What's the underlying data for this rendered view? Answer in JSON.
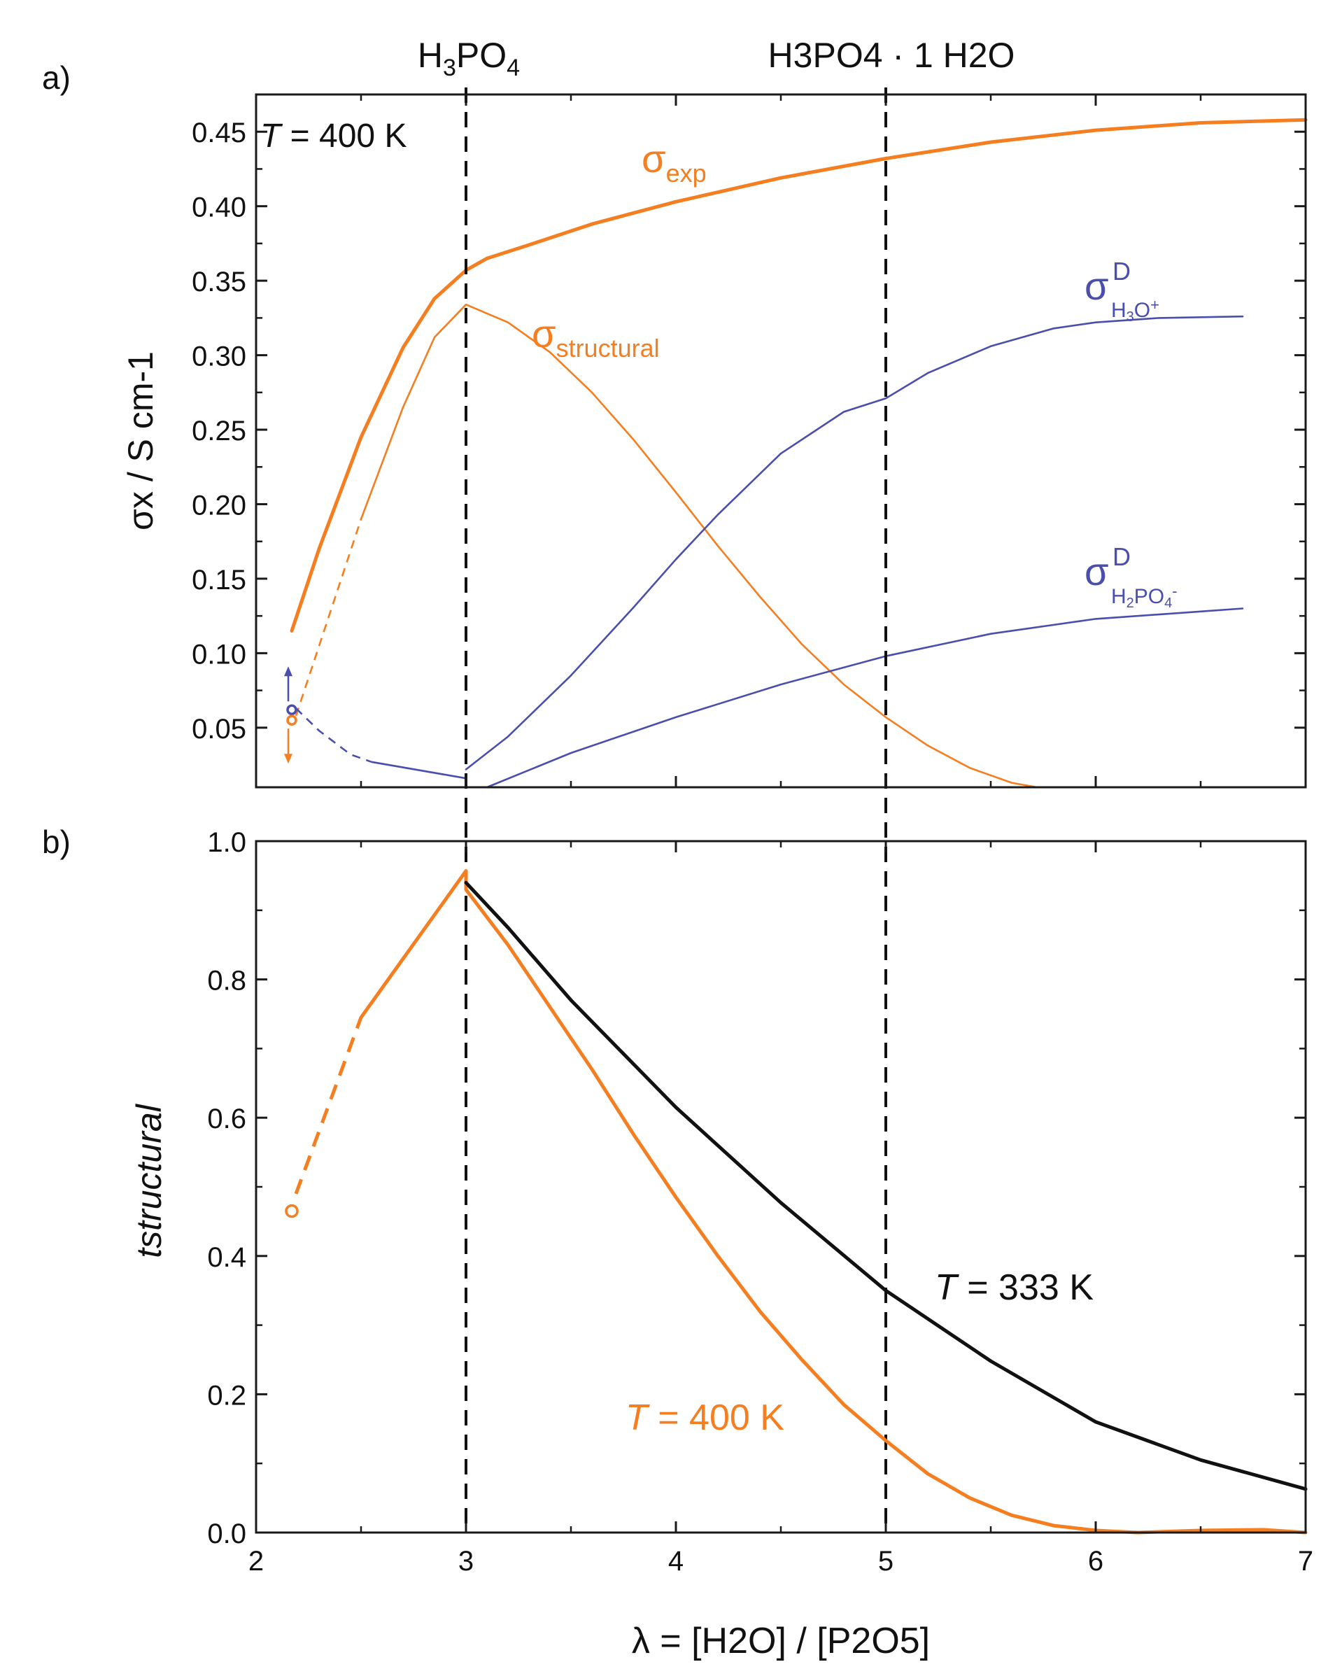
{
  "colors": {
    "orange": "#F47E20",
    "blue": "#4A4EAD",
    "black": "#111111",
    "axis": "#1a1a1a"
  },
  "top_labels": {
    "acid": {
      "main": [
        "H",
        "PO"
      ],
      "subs": [
        "3",
        "4"
      ]
    },
    "hydrate": {
      "text": "H3PO4 · 1 H2O"
    }
  },
  "chart_data": [
    {
      "id": "a",
      "panel_label": "a)",
      "type": "line",
      "title": "",
      "xlabel": "λ = [H2O] / [P2O5]",
      "ylabel": "σx / S cm-1",
      "xlim": [
        2,
        7
      ],
      "ylim": [
        0.01,
        0.475
      ],
      "xticks": [
        2,
        3,
        4,
        5,
        6,
        7
      ],
      "yticks": [
        0.05,
        0.1,
        0.15,
        0.2,
        0.25,
        0.3,
        0.35,
        0.4,
        0.45
      ],
      "ytick_labels": [
        "0.05",
        "0.10",
        "0.15",
        "0.20",
        "0.25",
        "0.30",
        "0.35",
        "0.40",
        "0.45"
      ],
      "vlines": [
        3,
        5
      ],
      "annotation": {
        "text": "T = 400 K",
        "italic": "T",
        "rest": " = 400 K"
      },
      "series": [
        {
          "name": "σexp",
          "label_main": "σ",
          "label_sub": "exp",
          "color": "orange",
          "width": "bold",
          "x": [
            2.17,
            2.3,
            2.5,
            2.7,
            2.85,
            3.0,
            3.1,
            3.3,
            3.6,
            4.0,
            4.5,
            5.0,
            5.5,
            6.0,
            6.5,
            7.0
          ],
          "y": [
            0.115,
            0.17,
            0.245,
            0.305,
            0.338,
            0.357,
            0.365,
            0.374,
            0.388,
            0.403,
            0.419,
            0.432,
            0.443,
            0.451,
            0.456,
            0.458
          ]
        },
        {
          "name": "σstructural",
          "label_main": "σ",
          "label_sub": "structural",
          "color": "orange",
          "width": "thin",
          "x": [
            2.5,
            2.7,
            2.85,
            3.0,
            3.2,
            3.4,
            3.6,
            3.8,
            4.0,
            4.2,
            4.4,
            4.6,
            4.8,
            5.0,
            5.2,
            5.4,
            5.6,
            5.72
          ],
          "y": [
            0.19,
            0.265,
            0.312,
            0.334,
            0.322,
            0.302,
            0.275,
            0.243,
            0.208,
            0.172,
            0.138,
            0.106,
            0.079,
            0.057,
            0.038,
            0.023,
            0.013,
            0.01
          ],
          "dashed_x": [
            2.19,
            2.5
          ],
          "dashed_y": [
            0.058,
            0.19
          ]
        },
        {
          "name": "σD H3O+",
          "label_main": "σ",
          "label_sup": "D",
          "label_sub_parts": [
            "H",
            "3",
            "O",
            "+"
          ],
          "color": "blue",
          "width": "thin",
          "x": [
            3.0,
            3.2,
            3.5,
            3.8,
            4.0,
            4.2,
            4.5,
            4.8,
            5.0,
            5.2,
            5.5,
            5.8,
            6.0,
            6.3,
            6.7
          ],
          "y": [
            0.022,
            0.044,
            0.085,
            0.131,
            0.163,
            0.193,
            0.234,
            0.262,
            0.271,
            0.288,
            0.306,
            0.318,
            0.322,
            0.325,
            0.326
          ]
        },
        {
          "name": "σD H2PO4-",
          "label_main": "σ",
          "label_sup": "D",
          "label_sub_parts": [
            "H",
            "2",
            "PO",
            "4",
            "-"
          ],
          "color": "blue",
          "width": "thin",
          "x": [
            3.1,
            3.5,
            4.0,
            4.5,
            5.0,
            5.5,
            6.0,
            6.5,
            6.7
          ],
          "y": [
            0.01,
            0.033,
            0.057,
            0.079,
            0.098,
            0.113,
            0.123,
            0.128,
            0.13
          ],
          "lead_x": [
            2.55,
            3.0
          ],
          "lead_y": [
            0.027,
            0.016
          ],
          "dashed_x": [
            2.19,
            2.3,
            2.45,
            2.55
          ],
          "dashed_y": [
            0.063,
            0.048,
            0.032,
            0.027
          ]
        }
      ],
      "markers": [
        {
          "x": 2.17,
          "y": 0.062,
          "color": "blue",
          "arrow": "up"
        },
        {
          "x": 2.17,
          "y": 0.055,
          "color": "orange",
          "arrow": "down"
        }
      ]
    },
    {
      "id": "b",
      "panel_label": "b)",
      "type": "line",
      "title": "",
      "xlabel": "λ = [H2O] / [P2O5]",
      "ylabel": "tstructural",
      "xlim": [
        2,
        7
      ],
      "ylim": [
        0.0,
        1.0
      ],
      "xticks": [
        2,
        3,
        4,
        5,
        6,
        7
      ],
      "xtick_labels": [
        "2",
        "3",
        "4",
        "5",
        "6",
        "7"
      ],
      "yticks": [
        0.0,
        0.2,
        0.4,
        0.6,
        0.8,
        1.0
      ],
      "ytick_labels": [
        "0.0",
        "0.2",
        "0.4",
        "0.6",
        "0.8",
        "1.0"
      ],
      "vlines": [
        3,
        5
      ],
      "series": [
        {
          "name": "T = 400 K",
          "label_italic": "T",
          "label_rest": " = 400 K",
          "color": "orange",
          "width": "bold",
          "x": [
            2.5,
            3.0,
            3.0,
            3.2,
            3.4,
            3.6,
            3.8,
            4.0,
            4.2,
            4.4,
            4.6,
            4.8,
            5.0,
            5.2,
            5.4,
            5.6,
            5.8,
            6.0,
            6.2,
            6.5,
            6.8,
            7.0
          ],
          "y": [
            0.745,
            0.957,
            0.93,
            0.85,
            0.76,
            0.67,
            0.575,
            0.485,
            0.4,
            0.32,
            0.25,
            0.185,
            0.133,
            0.085,
            0.05,
            0.025,
            0.01,
            0.003,
            0.0,
            0.003,
            0.004,
            0.0
          ],
          "dashed_x": [
            2.19,
            2.5
          ],
          "dashed_y": [
            0.49,
            0.745
          ]
        },
        {
          "name": "T = 333 K",
          "label_italic": "T",
          "label_rest": " = 333 K",
          "color": "black",
          "width": "bold",
          "x": [
            3.0,
            3.2,
            3.5,
            4.0,
            4.5,
            5.0,
            5.5,
            6.0,
            6.5,
            7.0
          ],
          "y": [
            0.94,
            0.875,
            0.77,
            0.615,
            0.477,
            0.35,
            0.248,
            0.16,
            0.105,
            0.063
          ]
        }
      ],
      "markers": [
        {
          "x": 2.17,
          "y": 0.465,
          "color": "orange"
        }
      ]
    }
  ]
}
